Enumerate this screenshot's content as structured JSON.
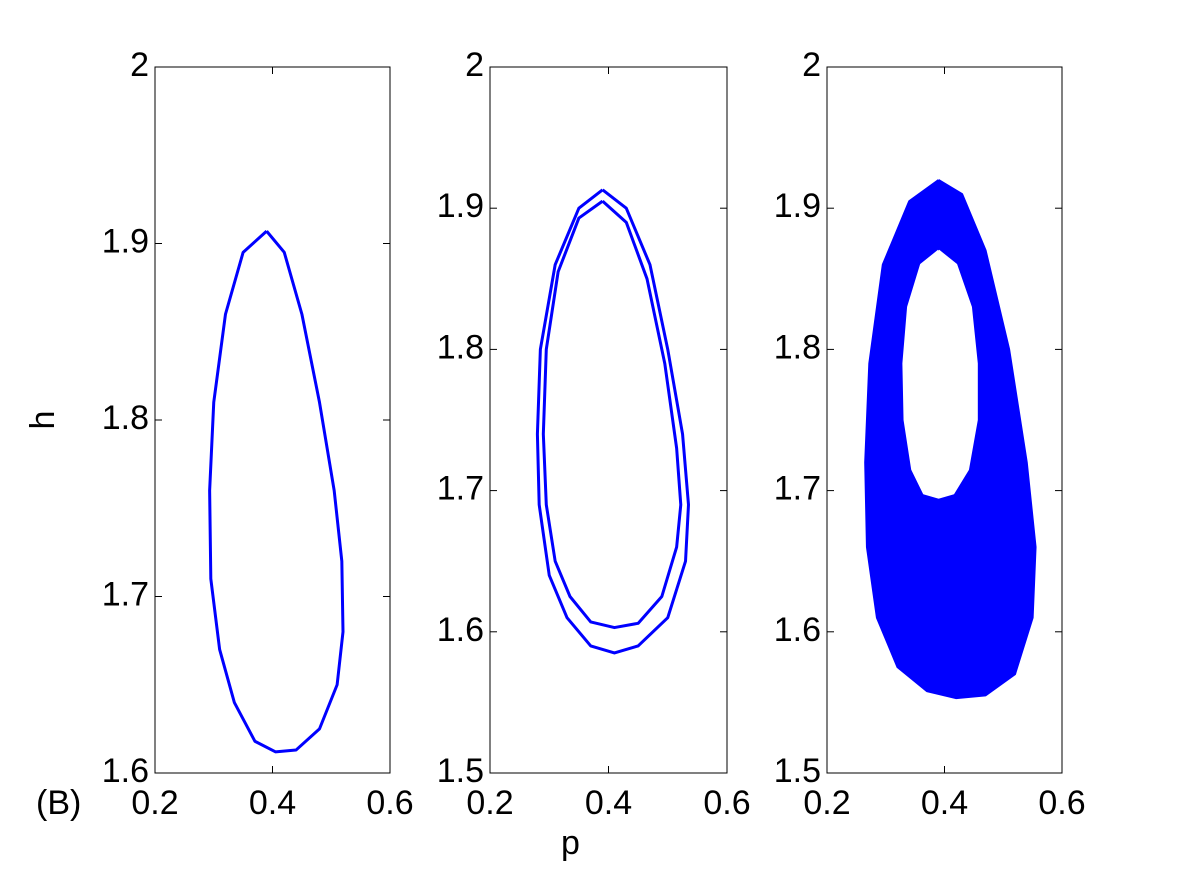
{
  "chart_data": [
    {
      "type": "line",
      "ylabel": "h",
      "annotation": "(B)",
      "xlim": [
        0.2,
        0.6
      ],
      "xticks": [
        0.2,
        0.4,
        0.6
      ],
      "ylim": [
        1.6,
        2
      ],
      "yticks": [
        1.6,
        1.7,
        1.8,
        1.9,
        2
      ],
      "series": [
        {
          "color": "#0000ff",
          "fill": false,
          "x": [
            0.39,
            0.42,
            0.45,
            0.48,
            0.505,
            0.518,
            0.52,
            0.51,
            0.48,
            0.44,
            0.405,
            0.37,
            0.335,
            0.31,
            0.295,
            0.293,
            0.3,
            0.32,
            0.35,
            0.39
          ],
          "values": [
            1.907,
            1.895,
            1.86,
            1.81,
            1.76,
            1.72,
            1.68,
            1.65,
            1.625,
            1.613,
            1.612,
            1.618,
            1.64,
            1.67,
            1.71,
            1.76,
            1.81,
            1.86,
            1.895,
            1.907
          ]
        }
      ]
    },
    {
      "type": "line",
      "xlabel": "p",
      "xlim": [
        0.2,
        0.6
      ],
      "xticks": [
        0.2,
        0.4,
        0.6
      ],
      "ylim": [
        1.5,
        2
      ],
      "yticks": [
        1.5,
        1.6,
        1.7,
        1.8,
        1.9,
        2
      ],
      "series": [
        {
          "color": "#0000ff",
          "fill": false,
          "x": [
            0.39,
            0.43,
            0.47,
            0.5,
            0.525,
            0.535,
            0.53,
            0.5,
            0.45,
            0.41,
            0.37,
            0.33,
            0.3,
            0.283,
            0.28,
            0.285,
            0.31,
            0.35,
            0.39
          ],
          "values": [
            1.913,
            1.9,
            1.86,
            1.8,
            1.74,
            1.69,
            1.65,
            1.61,
            1.59,
            1.585,
            1.59,
            1.61,
            1.64,
            1.69,
            1.74,
            1.8,
            1.86,
            1.9,
            1.913
          ]
        },
        {
          "color": "#0000ff",
          "fill": false,
          "x": [
            0.39,
            0.43,
            0.465,
            0.495,
            0.515,
            0.522,
            0.515,
            0.49,
            0.45,
            0.41,
            0.37,
            0.335,
            0.31,
            0.295,
            0.29,
            0.295,
            0.315,
            0.35,
            0.39
          ],
          "values": [
            1.905,
            1.89,
            1.85,
            1.79,
            1.73,
            1.69,
            1.66,
            1.625,
            1.606,
            1.603,
            1.607,
            1.625,
            1.65,
            1.69,
            1.74,
            1.8,
            1.855,
            1.893,
            1.905
          ]
        }
      ]
    },
    {
      "type": "line",
      "xlim": [
        0.2,
        0.6
      ],
      "xticks": [
        0.2,
        0.4,
        0.6
      ],
      "ylim": [
        1.5,
        2
      ],
      "yticks": [
        1.5,
        1.6,
        1.7,
        1.8,
        1.9,
        2
      ],
      "series": [
        {
          "color": "#0000ff",
          "fill": true,
          "x": [
            0.39,
            0.43,
            0.47,
            0.51,
            0.54,
            0.555,
            0.55,
            0.52,
            0.47,
            0.42,
            0.37,
            0.32,
            0.285,
            0.268,
            0.265,
            0.272,
            0.295,
            0.34,
            0.39
          ],
          "values": [
            1.92,
            1.91,
            1.87,
            1.8,
            1.72,
            1.66,
            1.61,
            1.57,
            1.555,
            1.553,
            1.558,
            1.575,
            1.61,
            1.66,
            1.72,
            1.79,
            1.86,
            1.905,
            1.92
          ]
        },
        {
          "color": "#ffffff",
          "fill": true,
          "x": [
            0.39,
            0.42,
            0.445,
            0.455,
            0.455,
            0.44,
            0.415,
            0.39,
            0.365,
            0.345,
            0.332,
            0.33,
            0.338,
            0.36,
            0.39
          ],
          "values": [
            1.87,
            1.86,
            1.83,
            1.79,
            1.75,
            1.715,
            1.698,
            1.695,
            1.698,
            1.715,
            1.75,
            1.79,
            1.83,
            1.86,
            1.87
          ]
        }
      ]
    }
  ]
}
